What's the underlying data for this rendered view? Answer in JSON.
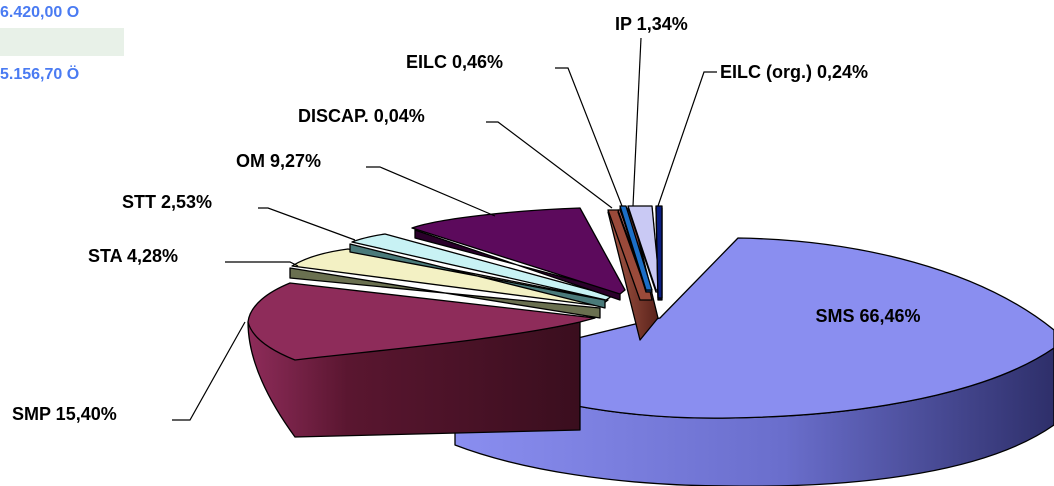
{
  "side_panel": {
    "value_1": "6.420,00 O",
    "value_2": "5.156,70 Ö",
    "accent_color": "#4a7bf2",
    "band_color": "#e8f1e8"
  },
  "chart_data": {
    "type": "pie",
    "exploded_3d": true,
    "title": "",
    "slices": [
      {
        "label": "SMS 66,46%",
        "value": 66.46,
        "color": "#8a8ef0"
      },
      {
        "label": "SMP 15,40%",
        "value": 15.4,
        "color": "#8e2c5a"
      },
      {
        "label": "STA 4,28%",
        "value": 4.28,
        "color": "#f3f1c4"
      },
      {
        "label": "STT 2,53%",
        "value": 2.53,
        "color": "#c8f2f4"
      },
      {
        "label": "OM 9,27%",
        "value": 9.27,
        "color": "#5c0a5c"
      },
      {
        "label": "DISCAP. 0,04%",
        "value": 0.04,
        "color": "#f08c8c"
      },
      {
        "label": "EILC 0,46%",
        "value": 0.46,
        "color": "#1c6ec6"
      },
      {
        "label": "IP 1,34%",
        "value": 1.34,
        "color": "#c9c9f4"
      },
      {
        "label": "EILC (org.) 0,24%",
        "value": 0.24,
        "color": "#0a1e82"
      },
      {
        "label": "",
        "value": 0.0,
        "color": "#9a4a3a"
      }
    ]
  }
}
